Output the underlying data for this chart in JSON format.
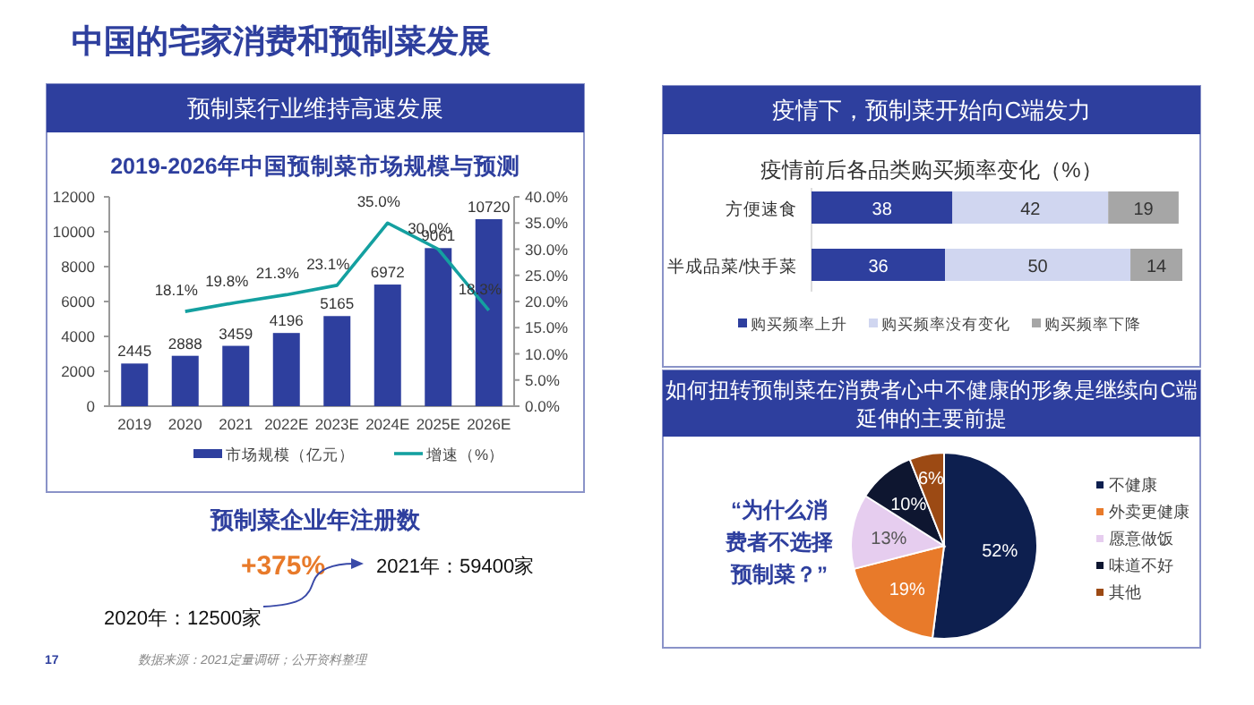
{
  "chart_data": [
    {
      "type": "other",
      "title": "中国的宅家消费和预制菜发展",
      "annotations": [
        "17",
        "数据来源：2021定量调研；公开资料整理"
      ]
    },
    {
      "type": "bar",
      "subtitle": "预制菜行业维持高速发展",
      "title": "2019-2026年中国预制菜市场规模与预测",
      "categories": [
        "2019",
        "2020",
        "2021",
        "2022E",
        "2023E",
        "2024E",
        "2025E",
        "2026E"
      ],
      "series": [
        {
          "name": "市场规模（亿元）",
          "color": "#2e3f9e",
          "values": [
            2445,
            2888,
            3459,
            4196,
            5165,
            6972,
            9061,
            10720
          ],
          "value_labels": [
            "2445",
            "2888",
            "3459",
            "4196",
            "5165",
            "6972",
            "9061",
            "10720"
          ]
        },
        {
          "name": "增速（%）",
          "type": "line",
          "axis": "y2",
          "color": "#14a0a0",
          "values": [
            null,
            18.1,
            19.8,
            21.3,
            23.1,
            35.0,
            30.0,
            18.3
          ],
          "value_labels": [
            null,
            "18.1%",
            "19.8%",
            "21.3%",
            "23.1%",
            "35.0%",
            "30.0%",
            "18.3%"
          ]
        }
      ],
      "ylim": [
        0,
        12000
      ],
      "yticks": [
        0,
        2000,
        4000,
        6000,
        8000,
        10000,
        12000
      ],
      "y2lim": [
        0,
        40
      ],
      "y2ticks": [
        {
          "value": 0,
          "label": "0.0%"
        },
        {
          "value": 5,
          "label": "5.0%"
        },
        {
          "value": 10,
          "label": "10.0%"
        },
        {
          "value": 15,
          "label": "15.0%"
        },
        {
          "value": 20,
          "label": "20.0%"
        },
        {
          "value": 25,
          "label": "25.0%"
        },
        {
          "value": 30,
          "label": "30.0%"
        },
        {
          "value": 35,
          "label": "35.0%"
        },
        {
          "value": 40,
          "label": "40.0%"
        }
      ],
      "legend": "bottom"
    },
    {
      "type": "other",
      "title": "预制菜企业年注册数",
      "annotations": [
        "+375%",
        "2021年：59400家",
        "2020年：12500家"
      ]
    },
    {
      "type": "bar",
      "orientation": "horizontal",
      "stacked": true,
      "subtitle": "疫情下，预制菜开始向C端发力",
      "title": "疫情前后各品类购买频率变化（%）",
      "categories": [
        "方便速食",
        "半成品菜/快手菜"
      ],
      "series": [
        {
          "name": "购买频率上升",
          "color": "#2e3f9e",
          "values": [
            38,
            36
          ]
        },
        {
          "name": "购买频率没有变化",
          "color": "#d0d6f0",
          "values": [
            42,
            50
          ]
        },
        {
          "name": "购买频率下降",
          "color": "#a6a6a6",
          "values": [
            19,
            14
          ]
        }
      ],
      "xlim": [
        0,
        100
      ],
      "tick_labels": "y",
      "data_labels": true,
      "legend": "bottom"
    },
    {
      "type": "pie",
      "subtitle": "如何扭转预制菜在消费者心中不健康的形象是继续向C端延伸的主要前提",
      "annotations": [
        "“为什么消费者不选择预制菜？”"
      ],
      "categories": [
        "不健康",
        "外卖更健康",
        "愿意做饭",
        "味道不好",
        "其他"
      ],
      "values": [
        52,
        19,
        13,
        10,
        6
      ],
      "colors": [
        "#0d1f4f",
        "#e87a2a",
        "#e6cdef",
        "#0e1630",
        "#9c4a14"
      ],
      "value_labels": [
        "52%",
        "19%",
        "13%",
        "10%",
        "6%"
      ],
      "legend": "right"
    }
  ]
}
